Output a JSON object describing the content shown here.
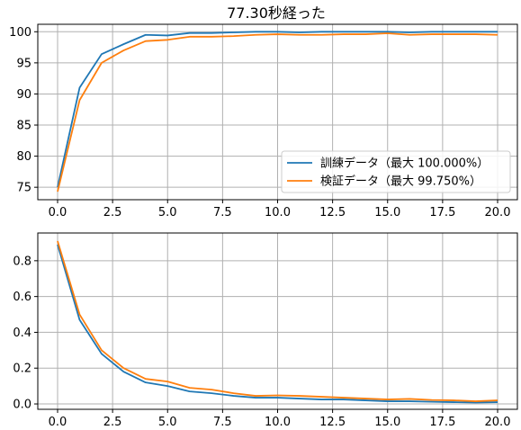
{
  "title": "77.30秒経った",
  "chart_data": [
    {
      "type": "line",
      "title": "77.30秒経った",
      "xlabel": "",
      "ylabel": "",
      "xlim": [
        -0.9,
        20.9
      ],
      "ylim": [
        73.0,
        101.2
      ],
      "grid": true,
      "x_ticks": [
        "0.0",
        "2.5",
        "5.0",
        "7.5",
        "10.0",
        "12.5",
        "15.0",
        "17.5",
        "20.0"
      ],
      "x_tick_values": [
        0,
        2.5,
        5,
        7.5,
        10,
        12.5,
        15,
        17.5,
        20
      ],
      "y_ticks": [
        "75",
        "80",
        "85",
        "90",
        "95",
        "100"
      ],
      "y_tick_values": [
        75,
        80,
        85,
        90,
        95,
        100
      ],
      "legend_position": "lower-right",
      "x": [
        0,
        1,
        2,
        3,
        4,
        5,
        6,
        7,
        8,
        9,
        10,
        11,
        12,
        13,
        14,
        15,
        16,
        17,
        18,
        19,
        20
      ],
      "series": [
        {
          "name": "訓練データ（最大 100.000%）",
          "color": "#1f77b4",
          "values": [
            75.0,
            91.0,
            96.4,
            98.0,
            99.5,
            99.4,
            99.8,
            99.8,
            99.9,
            100.0,
            100.0,
            99.9,
            100.0,
            100.0,
            100.0,
            100.0,
            99.9,
            100.0,
            100.0,
            100.0,
            100.0
          ]
        },
        {
          "name": "検証データ（最大 99.750%）",
          "color": "#ff7f0e",
          "values": [
            74.3,
            89.0,
            95.0,
            97.0,
            98.5,
            98.7,
            99.2,
            99.2,
            99.3,
            99.5,
            99.6,
            99.5,
            99.5,
            99.6,
            99.6,
            99.75,
            99.5,
            99.6,
            99.6,
            99.6,
            99.5
          ]
        }
      ]
    },
    {
      "type": "line",
      "xlabel": "",
      "ylabel": "",
      "xlim": [
        -0.9,
        20.9
      ],
      "ylim": [
        -0.03,
        0.955
      ],
      "grid": true,
      "x_ticks": [
        "0.0",
        "2.5",
        "5.0",
        "7.5",
        "10.0",
        "12.5",
        "15.0",
        "17.5",
        "20.0"
      ],
      "x_tick_values": [
        0,
        2.5,
        5,
        7.5,
        10,
        12.5,
        15,
        17.5,
        20
      ],
      "y_ticks": [
        "0.0",
        "0.2",
        "0.4",
        "0.6",
        "0.8"
      ],
      "y_tick_values": [
        0,
        0.2,
        0.4,
        0.6,
        0.8
      ],
      "x": [
        0,
        1,
        2,
        3,
        4,
        5,
        6,
        7,
        8,
        9,
        10,
        11,
        12,
        13,
        14,
        15,
        16,
        17,
        18,
        19,
        20
      ],
      "series": [
        {
          "color": "#1f77b4",
          "values": [
            0.89,
            0.47,
            0.28,
            0.18,
            0.12,
            0.1,
            0.07,
            0.06,
            0.045,
            0.035,
            0.035,
            0.03,
            0.025,
            0.025,
            0.02,
            0.015,
            0.015,
            0.012,
            0.01,
            0.008,
            0.01
          ]
        },
        {
          "color": "#ff7f0e",
          "values": [
            0.91,
            0.5,
            0.3,
            0.2,
            0.14,
            0.125,
            0.09,
            0.08,
            0.06,
            0.045,
            0.048,
            0.045,
            0.04,
            0.035,
            0.03,
            0.025,
            0.028,
            0.022,
            0.02,
            0.015,
            0.02
          ]
        }
      ]
    }
  ]
}
